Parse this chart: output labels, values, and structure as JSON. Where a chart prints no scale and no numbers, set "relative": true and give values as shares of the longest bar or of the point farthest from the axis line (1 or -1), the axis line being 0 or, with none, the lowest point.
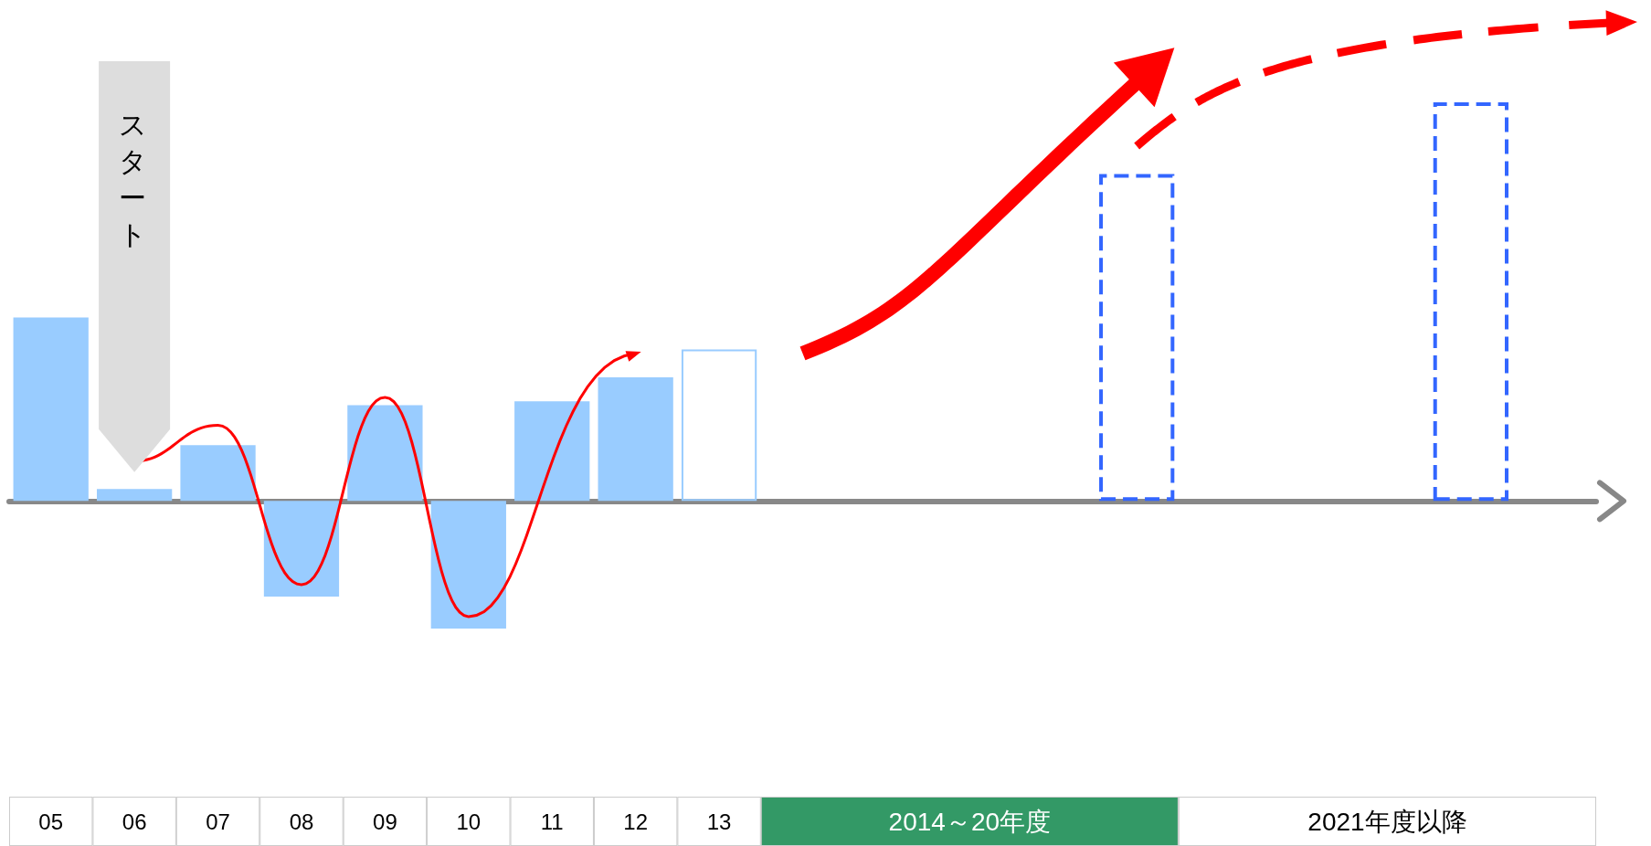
{
  "chart_data": {
    "type": "bar",
    "relative": true,
    "grid": false,
    "categories": [
      "05",
      "06",
      "07",
      "08",
      "09",
      "10",
      "11",
      "12",
      "13",
      null,
      null,
      "2014～20年度",
      null,
      null,
      null,
      null,
      "2021年度以降",
      null,
      null
    ],
    "series": [
      {
        "color": "#99ccff",
        "values": [
          0.46,
          0.03,
          0.14,
          -0.24,
          0.24,
          -0.32,
          0.25,
          0.31,
          null,
          null,
          null,
          null,
          null,
          null,
          null,
          null,
          null,
          null,
          null
        ]
      },
      {
        "color": "#99ccff",
        "line_style": "solid",
        "values": [
          null,
          null,
          null,
          null,
          null,
          null,
          null,
          null,
          0.38,
          null,
          null,
          null,
          null,
          null,
          null,
          null,
          null,
          null,
          null
        ]
      },
      {
        "color": "#3366ff",
        "line_style": "dashed",
        "values": [
          null,
          null,
          null,
          null,
          null,
          null,
          null,
          null,
          null,
          null,
          null,
          null,
          null,
          0.82,
          null,
          null,
          null,
          1,
          null
        ]
      }
    ],
    "annotations": [
      "スタート"
    ]
  }
}
